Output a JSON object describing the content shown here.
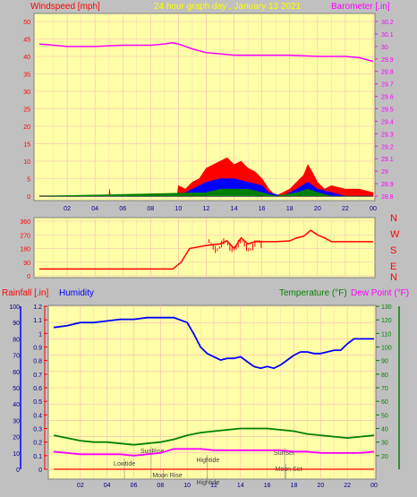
{
  "colors": {
    "background": "#c0c0c0",
    "plot_bg": "#ffffa8",
    "grid": "#f4b8b8",
    "wind_text": "#ff0000",
    "baro": "#ff00ff",
    "title": "#ffff00",
    "humidity": "#0000ff",
    "rain": "#ff0000",
    "temp": "#008000",
    "dew": "#ff00ff",
    "gust": "#ff0000",
    "avg": "#0000ff",
    "calm": "#008000",
    "tide_text": "#404040",
    "tick_text": "#000080"
  },
  "header": {
    "windspeed_label": "Windspeed [mph]",
    "title": "24 hour graph day , January 13 2021",
    "barometer_label": "Barometer [.in]"
  },
  "bottom_header": {
    "rainfall_label": "Rainfall [.in]",
    "humidity_label": "Humidity",
    "temperature_label": "Temperature (°F)",
    "dewpoint_label": "Dew Point (°F)"
  },
  "chart_data": [
    {
      "type": "line",
      "name": "wind-and-barometer",
      "x_ticks": [
        "02",
        "04",
        "06",
        "08",
        "10",
        "12",
        "14",
        "16",
        "18",
        "20",
        "22",
        "00"
      ],
      "left_axis": {
        "label": "Windspeed [mph]",
        "ylim": [
          0,
          50
        ],
        "ticks": [
          "0",
          "5",
          "10",
          "15",
          "20",
          "25",
          "30",
          "35",
          "40",
          "45",
          "50"
        ]
      },
      "right_axis": {
        "label": "Barometer [.in]",
        "ylim": [
          28.8,
          30.2
        ],
        "ticks": [
          "28.8",
          "28.9",
          "29",
          "29.1",
          "29.2",
          "29.3",
          "29.4",
          "29.5",
          "29.6",
          "29.7",
          "29.8",
          "29.9",
          "30",
          "30.1",
          "30.2"
        ]
      },
      "barometer": {
        "x": [
          0,
          2,
          4,
          6,
          8,
          9,
          9.5,
          10,
          11,
          12,
          14,
          16,
          18,
          20,
          22,
          23,
          24
        ],
        "y": [
          30.02,
          30.0,
          30.0,
          30.01,
          30.01,
          30.02,
          30.03,
          30.02,
          29.98,
          29.95,
          29.93,
          29.93,
          29.93,
          29.92,
          29.92,
          29.91,
          29.88
        ]
      },
      "wind_gust": {
        "x": [
          0,
          5,
          5.05,
          5.1,
          9.9,
          10,
          10.5,
          11,
          11.5,
          12,
          12.5,
          13,
          13.5,
          14,
          14.5,
          15,
          15.5,
          16,
          16.5,
          17,
          18,
          18.5,
          19,
          19.3,
          19.6,
          20,
          20.5,
          21,
          22,
          23,
          24
        ],
        "y": [
          0,
          0,
          2,
          0,
          0,
          3,
          2,
          4,
          5,
          8,
          9,
          10,
          11,
          9,
          10,
          8,
          7,
          5,
          2,
          0,
          2,
          4,
          6,
          9,
          7,
          4,
          2,
          3,
          2,
          2,
          1
        ]
      },
      "wind_avg": {
        "x": [
          0,
          10,
          11,
          12,
          13,
          14,
          15,
          16,
          16.5,
          17.5,
          18.5,
          19.3,
          20,
          21,
          22,
          24
        ],
        "y": [
          0,
          0,
          2,
          4,
          5,
          5,
          4,
          3,
          1,
          0,
          2,
          4,
          2,
          1,
          0,
          0
        ]
      },
      "wind_calm": {
        "x": [
          0,
          12,
          13,
          14,
          15,
          16,
          17,
          18.5,
          19.3,
          20,
          21,
          24
        ],
        "y": [
          0,
          1,
          2,
          2,
          2,
          1,
          0,
          1,
          2,
          1,
          0,
          0
        ]
      }
    },
    {
      "type": "line",
      "name": "wind-direction",
      "x_ticks": [
        "02",
        "04",
        "06",
        "08",
        "10",
        "12",
        "14",
        "16",
        "18",
        "20",
        "22",
        "00"
      ],
      "left_axis": {
        "ylim": [
          0,
          360
        ],
        "ticks": [
          "0",
          "90",
          "180",
          "270",
          "360"
        ]
      },
      "direction_labels": [
        "N",
        "W",
        "S",
        "E",
        "N"
      ],
      "direction": {
        "x": [
          0,
          9.6,
          10.2,
          10.8,
          12,
          13,
          13.5,
          14,
          14.5,
          15,
          15.5,
          16.5,
          17,
          18,
          18.5,
          19,
          19.5,
          20,
          20.5,
          21,
          22,
          24
        ],
        "y": [
          45,
          45,
          90,
          180,
          200,
          210,
          230,
          180,
          250,
          210,
          225,
          225,
          225,
          230,
          250,
          260,
          300,
          270,
          250,
          225,
          225,
          225
        ]
      }
    },
    {
      "type": "line",
      "name": "humidity-temperature-rain",
      "x_ticks": [
        "02",
        "04",
        "06",
        "08",
        "10",
        "12",
        "14",
        "16",
        "18",
        "20",
        "22",
        "00"
      ],
      "rain_axis": {
        "label": "Rainfall [.in]",
        "ylim": [
          0,
          1.2
        ],
        "ticks": [
          "0",
          "0.1",
          "0.2",
          "0.3",
          "0.4",
          "0.5",
          "0.6",
          "0.7",
          "0.8",
          "0.9",
          "1",
          "1.1",
          "1.2"
        ]
      },
      "humidity_axis": {
        "label": "Humidity",
        "ylim": [
          0,
          100
        ],
        "ticks": [
          "0",
          "10",
          "20",
          "30",
          "40",
          "50",
          "60",
          "70",
          "80",
          "90",
          "100"
        ]
      },
      "temp_axis": {
        "label": "Temperature (°F)",
        "ylim": [
          10,
          130
        ],
        "ticks": [
          "20",
          "30",
          "40",
          "50",
          "60",
          "70",
          "80",
          "90",
          "100",
          "110",
          "120",
          "130"
        ]
      },
      "humidity": {
        "x": [
          0,
          1,
          2,
          3,
          4,
          5,
          6,
          7,
          8,
          9,
          10,
          10.5,
          11,
          11.5,
          12,
          12.5,
          13,
          13.5,
          14,
          14.5,
          15,
          15.5,
          16,
          16.5,
          17,
          17.5,
          18,
          18.5,
          19,
          19.5,
          20,
          20.5,
          21,
          21.5,
          22,
          22.5,
          23,
          24
        ],
        "y": [
          87,
          88,
          90,
          90,
          91,
          92,
          92,
          93,
          93,
          93,
          90,
          83,
          75,
          71,
          69,
          67,
          68,
          68,
          69,
          66,
          63,
          62,
          63,
          62,
          64,
          67,
          70,
          72,
          72,
          71,
          71,
          72,
          73,
          73,
          77,
          80,
          80,
          80
        ]
      },
      "temperature": {
        "x": [
          0,
          1,
          2,
          3,
          4,
          5,
          6,
          7,
          8,
          9,
          10,
          11,
          12,
          13,
          14,
          15,
          16,
          17,
          18,
          19,
          20,
          21,
          22,
          23,
          24
        ],
        "y": [
          35,
          33,
          31,
          30,
          30,
          29,
          28,
          29,
          30,
          32,
          35,
          37,
          38,
          39,
          40,
          40,
          40,
          39,
          38,
          36,
          35,
          34,
          33,
          34,
          35
        ]
      },
      "dewpoint": {
        "x": [
          0,
          1,
          2,
          3,
          4,
          5,
          6,
          7,
          8,
          9,
          10,
          11,
          12,
          13,
          14,
          15,
          16,
          17,
          18,
          19,
          20,
          21,
          22,
          23,
          24
        ],
        "y": [
          23,
          22,
          21,
          21,
          21,
          21,
          20,
          21,
          22,
          25,
          25,
          25,
          24,
          24,
          24,
          24,
          24,
          24,
          23,
          23,
          22,
          22,
          22,
          22,
          23
        ]
      },
      "rainfall": {
        "x": [
          0,
          24
        ],
        "y": [
          0,
          0
        ]
      },
      "tide_annotations": [
        {
          "text": "SunRise",
          "x": 7.3
        },
        {
          "text": "Lowtide",
          "x": 5.3
        },
        {
          "text": "Moon Rise",
          "x": 8.2
        },
        {
          "text": "Hightide",
          "x": 11.5
        },
        {
          "text": "Hightide",
          "x": 11.5
        },
        {
          "text": "SunSet",
          "x": 17.3
        },
        {
          "text": "Moon Set",
          "x": 17.4
        }
      ]
    }
  ]
}
